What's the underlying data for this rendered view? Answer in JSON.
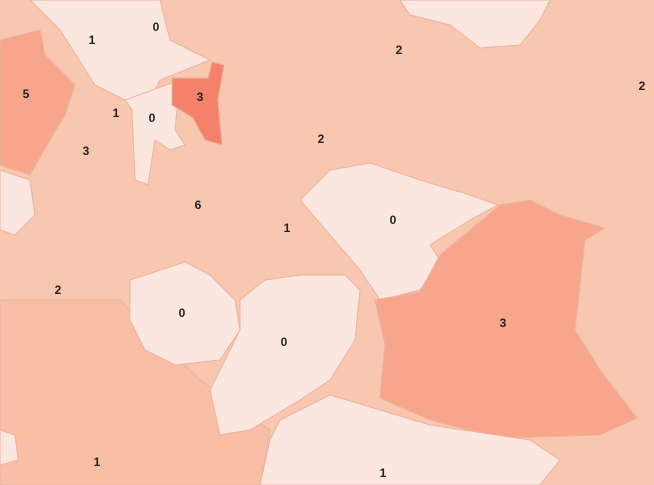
{
  "colors": {
    "level_0": "#fbe7e0",
    "level_1": "#f9c6b0",
    "level_2": "#f8bea6",
    "level_3": "#f7a68c",
    "level_4": "#f4826a",
    "border": "#e9b4a0"
  },
  "regions": [
    {
      "value": "0"
    },
    {
      "value": "1"
    },
    {
      "value": "5"
    },
    {
      "value": "3"
    },
    {
      "value": "1"
    },
    {
      "value": "0"
    },
    {
      "value": "3"
    },
    {
      "value": "2"
    },
    {
      "value": "2"
    },
    {
      "value": "2"
    },
    {
      "value": "6"
    },
    {
      "value": "1"
    },
    {
      "value": "0"
    },
    {
      "value": "2"
    },
    {
      "value": "0"
    },
    {
      "value": "0"
    },
    {
      "value": "3"
    },
    {
      "value": "1"
    },
    {
      "value": "1"
    }
  ]
}
